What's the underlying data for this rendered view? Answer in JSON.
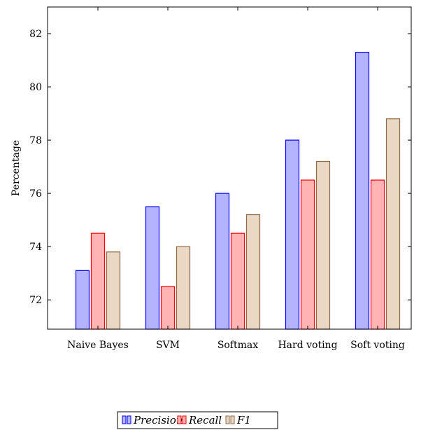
{
  "chart_data": {
    "type": "bar",
    "categories": [
      "Naive Bayes",
      "SVM",
      "Softmax",
      "Hard voting",
      "Soft voting"
    ],
    "series": [
      {
        "name": "Precision",
        "values": [
          73.1,
          75.5,
          76.0,
          78.0,
          81.3
        ],
        "fill": "#b3b3ff",
        "stroke": "#0000ff"
      },
      {
        "name": "Recall",
        "values": [
          74.5,
          72.5,
          74.5,
          76.5,
          76.5
        ],
        "fill": "#ffb3b3",
        "stroke": "#ff0000"
      },
      {
        "name": "F1",
        "values": [
          73.8,
          74.0,
          75.2,
          77.2,
          78.8
        ],
        "fill": "#ead8c4",
        "stroke": "#8c6a4a"
      }
    ],
    "title": "",
    "xlabel": "",
    "ylabel": "Percentage",
    "ylim": [
      70.9,
      83.0
    ],
    "yticks": [
      "72",
      "74",
      "76",
      "78",
      "80",
      "82"
    ],
    "grid": false,
    "legend_placement": "bottom"
  }
}
